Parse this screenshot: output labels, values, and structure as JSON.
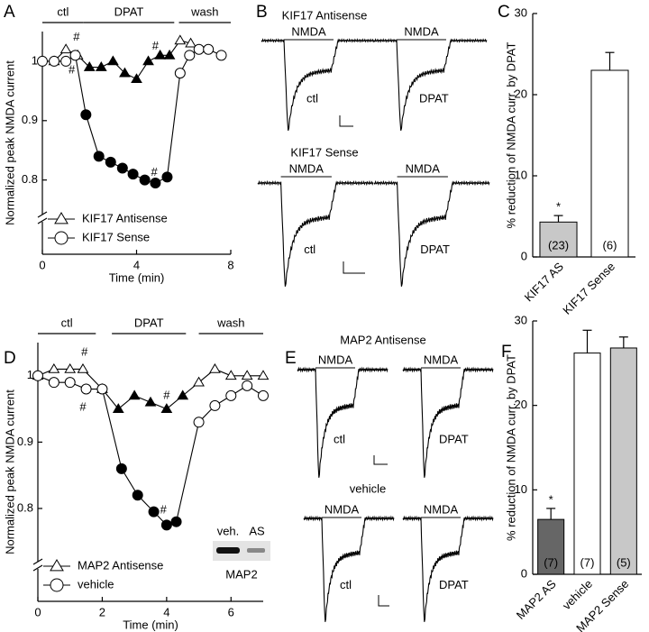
{
  "chart_data": [
    {
      "type": "line",
      "panel": "A",
      "xlabel": "Time (min)",
      "ylabel": "Normalized peak NMDA current",
      "xlim": [
        0,
        8
      ],
      "xticks": [
        0,
        4,
        8
      ],
      "ylim": [
        0.675,
        1.05
      ],
      "yticks": [
        0.8,
        0.9,
        1
      ],
      "axis_break": true,
      "legend": "lower left",
      "periods": [
        {
          "label": "ctl",
          "start": 0,
          "end": 1.75
        },
        {
          "label": "DPAT",
          "start": 1.75,
          "end": 5.6
        },
        {
          "label": "wash",
          "start": 5.8,
          "end": 8
        }
      ],
      "series": [
        {
          "name": "KIF17 Antisense",
          "marker": "triangle",
          "color": "#000000",
          "x": [
            0.5,
            1,
            1.5,
            2,
            2.5,
            3,
            3.5,
            4,
            4.5,
            5,
            5.4,
            5.85,
            6.3
          ],
          "values": [
            1.0,
            1.02,
            1.01,
            0.99,
            0.99,
            1.0,
            0.98,
            0.97,
            1.0,
            1.01,
            1.01,
            1.035,
            1.03
          ]
        },
        {
          "name": "KIF17 Sense",
          "marker": "circle",
          "color": "#000000",
          "x": [
            0,
            0.5,
            1,
            1.4,
            1.85,
            2.4,
            2.9,
            3.4,
            3.85,
            4.35,
            4.8,
            5.3,
            5.85,
            6.25,
            6.65,
            7.05,
            7.6
          ],
          "values": [
            1.0,
            1.0,
            1.0,
            1.01,
            0.91,
            0.84,
            0.83,
            0.82,
            0.81,
            0.8,
            0.795,
            0.805,
            0.98,
            1.01,
            1.02,
            1.02,
            1.01
          ]
        }
      ],
      "annotations": [
        {
          "text": "#",
          "x": 1.45,
          "y": 1.04
        },
        {
          "text": "#",
          "x": 1.25,
          "y": 0.985
        },
        {
          "text": "#",
          "x": 4.8,
          "y": 1.025
        },
        {
          "text": "#",
          "x": 4.75,
          "y": 0.812
        }
      ]
    },
    {
      "type": "traces",
      "panel": "B",
      "groups": [
        {
          "title": "KIF17 Antisense",
          "traces": [
            {
              "stimulus": "NMDA",
              "label": "ctl"
            },
            {
              "stimulus": "NMDA",
              "label": "DPAT"
            }
          ]
        },
        {
          "title": "KIF17 Sense",
          "traces": [
            {
              "stimulus": "NMDA",
              "label": "ctl"
            },
            {
              "stimulus": "NMDA",
              "label": "DPAT"
            }
          ]
        }
      ]
    },
    {
      "type": "bar",
      "panel": "C",
      "ylabel": "% reduction of NMDA curr. by DPAT",
      "categories": [
        "KIF17 AS",
        "KIF17 Sense"
      ],
      "values": [
        4.3,
        23
      ],
      "errors": [
        0.8,
        2.2
      ],
      "colors": [
        "#c8c8c8",
        "#ffffff"
      ],
      "n_labels": [
        "(23)",
        "(6)"
      ],
      "significance": [
        "*",
        null
      ],
      "ylim": [
        0,
        30
      ],
      "yticks": [
        0,
        10,
        20,
        30
      ]
    },
    {
      "type": "line",
      "panel": "D",
      "xlabel": "Time (min)",
      "ylabel": "Normalized peak NMDA current",
      "xlim": [
        0,
        7
      ],
      "xticks": [
        0,
        2,
        4,
        6
      ],
      "ylim": [
        0.66,
        1.05
      ],
      "yticks": [
        0.8,
        0.9,
        1
      ],
      "axis_break": true,
      "legend": "lower left",
      "periods": [
        {
          "label": "ctl",
          "start": 0,
          "end": 1.8
        },
        {
          "label": "DPAT",
          "start": 2.3,
          "end": 4.6
        },
        {
          "label": "wash",
          "start": 5,
          "end": 7
        }
      ],
      "series": [
        {
          "name": "MAP2 Antisense",
          "marker": "triangle",
          "color": "#000000",
          "x": [
            0,
            0.5,
            1,
            1.4,
            2,
            2.5,
            3,
            3.5,
            4,
            4.5,
            5,
            5.5,
            6,
            6.5,
            7
          ],
          "values": [
            1.0,
            1.01,
            1.01,
            1.01,
            0.98,
            0.95,
            0.97,
            0.96,
            0.95,
            0.97,
            0.99,
            1.01,
            1.0,
            1.0,
            1.0
          ]
        },
        {
          "name": "vehicle",
          "marker": "circle",
          "color": "#000000",
          "x": [
            0,
            0.5,
            1,
            1.5,
            2,
            2.6,
            3.1,
            3.6,
            4,
            4.3,
            5,
            5.5,
            6,
            6.5,
            7
          ],
          "values": [
            1.0,
            0.99,
            0.99,
            0.98,
            0.98,
            0.86,
            0.82,
            0.795,
            0.775,
            0.78,
            0.93,
            0.955,
            0.97,
            0.985,
            0.97
          ]
        }
      ],
      "annotations": [
        {
          "text": "#",
          "x": 1.45,
          "y": 1.035
        },
        {
          "text": "#",
          "x": 1.4,
          "y": 0.952
        },
        {
          "text": "#",
          "x": 4,
          "y": 0.97
        },
        {
          "text": "#",
          "x": 3.9,
          "y": 0.797
        }
      ],
      "inset": {
        "labels": [
          "veh.",
          "AS"
        ],
        "caption": "MAP2"
      }
    },
    {
      "type": "traces",
      "panel": "E",
      "groups": [
        {
          "title": "MAP2 Antisense",
          "traces": [
            {
              "stimulus": "NMDA",
              "label": "ctl"
            },
            {
              "stimulus": "NMDA",
              "label": "DPAT"
            }
          ]
        },
        {
          "title": "vehicle",
          "traces": [
            {
              "stimulus": "NMDA",
              "label": "ctl"
            },
            {
              "stimulus": "NMDA",
              "label": "DPAT"
            }
          ]
        }
      ]
    },
    {
      "type": "bar",
      "panel": "F",
      "ylabel": "% reduction of NMDA curr. by DPAT",
      "categories": [
        "MAP2 AS",
        "vehicle",
        "MAP2 Sense"
      ],
      "values": [
        6.5,
        26.2,
        26.8
      ],
      "errors": [
        1.3,
        2.7,
        1.3
      ],
      "colors": [
        "#666666",
        "#ffffff",
        "#c8c8c8"
      ],
      "n_labels": [
        "(7)",
        "(7)",
        "(5)"
      ],
      "significance": [
        "*",
        null,
        null
      ],
      "ylim": [
        0,
        30
      ],
      "yticks": [
        0,
        10,
        20,
        30
      ]
    }
  ]
}
